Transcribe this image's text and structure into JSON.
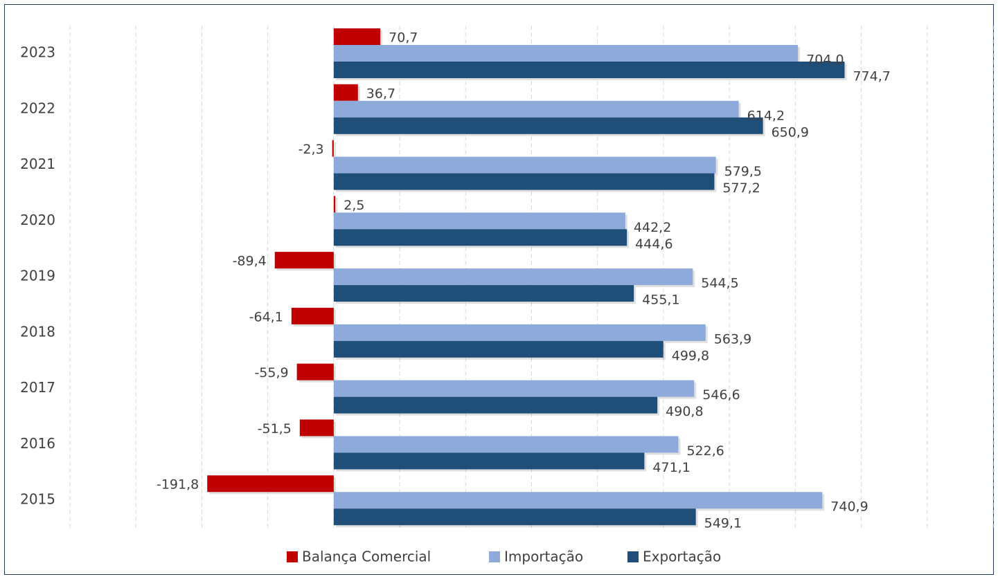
{
  "chart_data": {
    "type": "bar",
    "orientation": "horizontal",
    "categories": [
      "2023",
      "2022",
      "2021",
      "2020",
      "2019",
      "2018",
      "2017",
      "2016",
      "2015"
    ],
    "series": [
      {
        "name": "Balança Comercial",
        "color": "#c00000",
        "values": [
          70.7,
          36.7,
          -2.3,
          2.5,
          -89.4,
          -64.1,
          -55.9,
          -51.5,
          -191.8
        ],
        "labels": [
          "70,7",
          "36,7",
          "-2,3",
          "2,5",
          "-89,4",
          "-64,1",
          "-55,9",
          "-51,5",
          "-191,8"
        ]
      },
      {
        "name": "Importação",
        "color": "#8eaadb",
        "values": [
          704.0,
          614.2,
          579.5,
          442.2,
          544.5,
          563.9,
          546.6,
          522.6,
          740.9
        ],
        "labels": [
          "704,0",
          "614,2",
          "579,5",
          "442,2",
          "544,5",
          "563,9",
          "546,6",
          "522,6",
          "740,9"
        ]
      },
      {
        "name": "Exportação",
        "color": "#1f4e79",
        "values": [
          774.7,
          650.9,
          577.2,
          444.6,
          455.1,
          499.8,
          490.8,
          471.1,
          549.1
        ],
        "labels": [
          "774,7",
          "650,9",
          "577,2",
          "444,6",
          "455,1",
          "499,8",
          "490,8",
          "471,1",
          "549,1"
        ]
      }
    ],
    "xlim": [
      -400,
      1000
    ],
    "grid": "vertical dashed",
    "legend_position": "bottom",
    "title": "",
    "xlabel": "",
    "ylabel": ""
  }
}
